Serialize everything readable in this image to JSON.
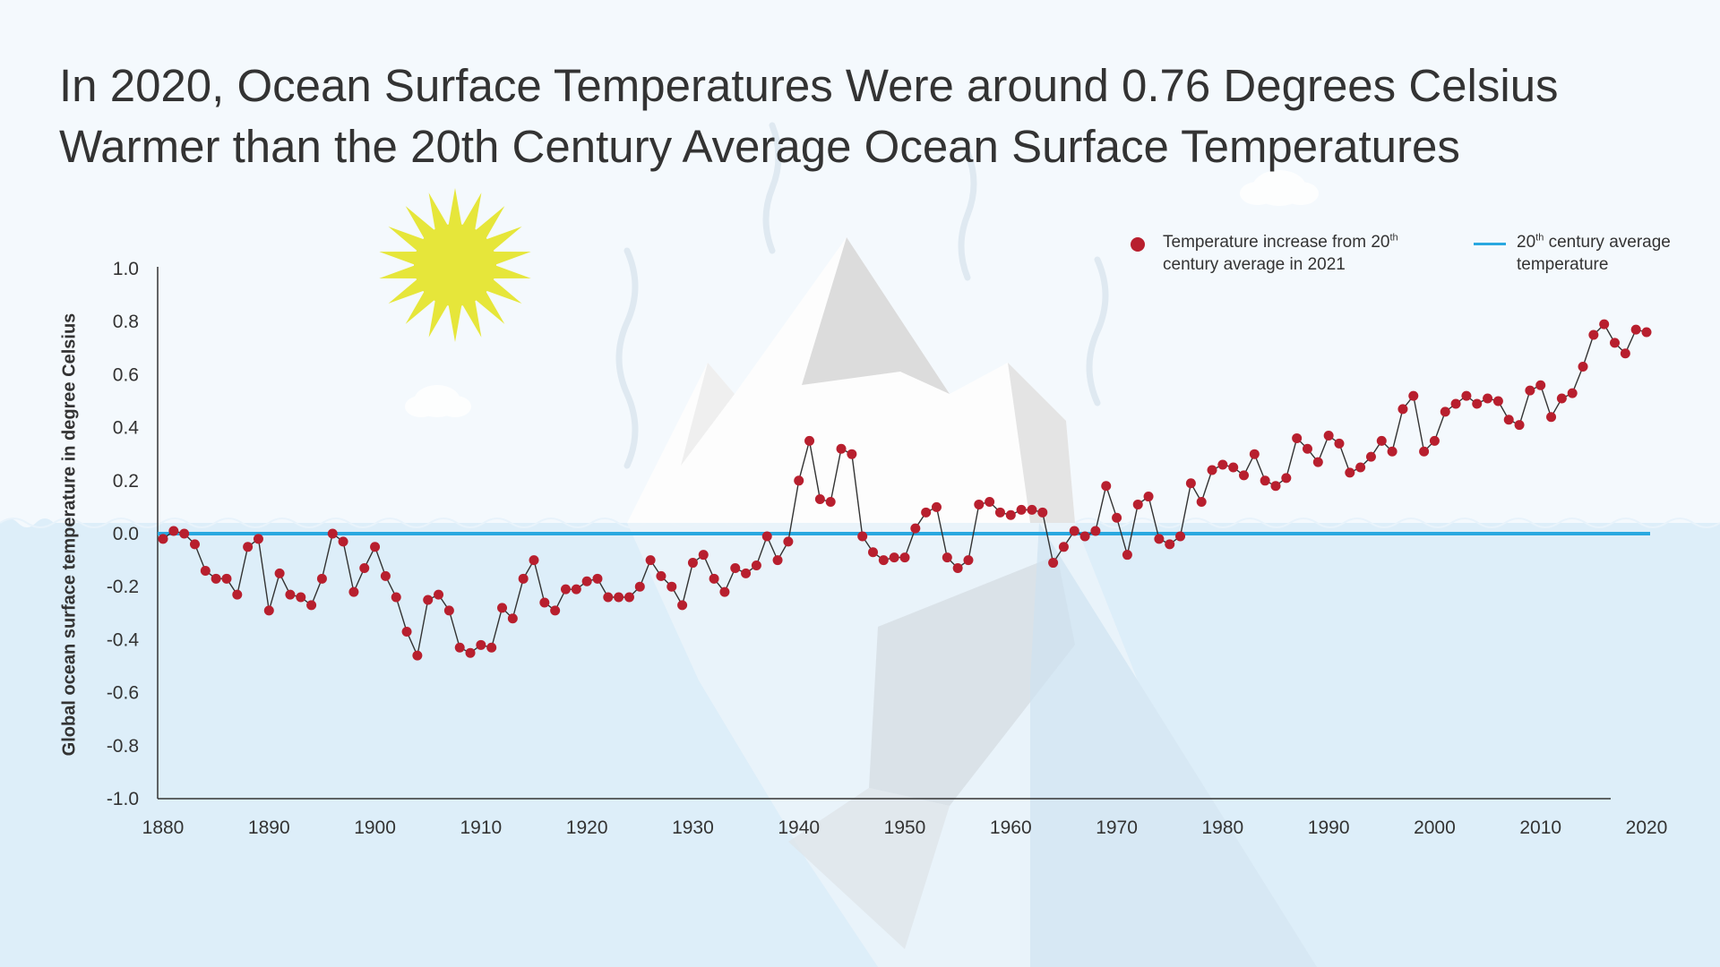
{
  "title": {
    "line1": "In 2020, Ocean Surface Temperatures Were around 0.76 Degrees Celsius",
    "line2": "Warmer than the 20th Century Average Ocean Surface Temperatures"
  },
  "legend": {
    "red_line1_prefix": "Temperature increase from 20",
    "red_line1_sup": "th",
    "red_line2": "century average in 2021",
    "blue_line1_prefix": "20",
    "blue_line1_sup": "th",
    "blue_line1_suffix": " century average",
    "blue_line2": "temperature"
  },
  "colors": {
    "background": "#f4f9fd",
    "water": "#ddeef9",
    "marker": "#b81f2e",
    "baseline": "#29a8e0",
    "sun": "#e6e63a",
    "text": "#333333"
  },
  "illustration": [
    "sun",
    "iceberg",
    "clouds",
    "heat-waves",
    "water"
  ],
  "chart_data": {
    "type": "line",
    "title": "In 2020, Ocean Surface Temperatures Were around 0.76 Degrees Celsius Warmer than the 20th Century Average Ocean Surface Temperatures",
    "xlabel": "",
    "ylabel": "Global ocean surface temperature in degree Celsius",
    "xlim": [
      1880,
      2020
    ],
    "ylim": [
      -1.0,
      1.0
    ],
    "x_ticks": [
      1880,
      1890,
      1900,
      1910,
      1920,
      1930,
      1940,
      1950,
      1960,
      1970,
      1980,
      1990,
      2000,
      2010,
      2020
    ],
    "y_ticks": [
      "1.0",
      "0.8",
      "0.6",
      "0.4",
      "0.2",
      "0.0",
      "-0.2",
      "-0.4",
      "-0.6",
      "-0.8",
      "-1.0"
    ],
    "grid": false,
    "legend_position": "top-right",
    "baseline": {
      "name": "20th century average temperature",
      "value": 0.0
    },
    "series": [
      {
        "name": "Temperature increase from 20th century average in 2021",
        "x": [
          1880,
          1881,
          1882,
          1883,
          1884,
          1885,
          1886,
          1887,
          1888,
          1889,
          1890,
          1891,
          1892,
          1893,
          1894,
          1895,
          1896,
          1897,
          1898,
          1899,
          1900,
          1901,
          1902,
          1903,
          1904,
          1905,
          1906,
          1907,
          1908,
          1909,
          1910,
          1911,
          1912,
          1913,
          1914,
          1915,
          1916,
          1917,
          1918,
          1919,
          1920,
          1921,
          1922,
          1923,
          1924,
          1925,
          1926,
          1927,
          1928,
          1929,
          1930,
          1931,
          1932,
          1933,
          1934,
          1935,
          1936,
          1937,
          1938,
          1939,
          1940,
          1941,
          1942,
          1943,
          1944,
          1945,
          1946,
          1947,
          1948,
          1949,
          1950,
          1951,
          1952,
          1953,
          1954,
          1955,
          1956,
          1957,
          1958,
          1959,
          1960,
          1961,
          1962,
          1963,
          1964,
          1965,
          1966,
          1967,
          1968,
          1969,
          1970,
          1971,
          1972,
          1973,
          1974,
          1975,
          1976,
          1977,
          1978,
          1979,
          1980,
          1981,
          1982,
          1983,
          1984,
          1985,
          1986,
          1987,
          1988,
          1989,
          1990,
          1991,
          1992,
          1993,
          1994,
          1995,
          1996,
          1997,
          1998,
          1999,
          2000,
          2001,
          2002,
          2003,
          2004,
          2005,
          2006,
          2007,
          2008,
          2009,
          2010,
          2011,
          2012,
          2013,
          2014,
          2015,
          2016,
          2017,
          2018,
          2019,
          2020
        ],
        "y": [
          -0.02,
          0.01,
          0.0,
          -0.04,
          -0.14,
          -0.17,
          -0.17,
          -0.23,
          -0.05,
          -0.02,
          -0.29,
          -0.15,
          -0.23,
          -0.24,
          -0.27,
          -0.17,
          0.0,
          -0.03,
          -0.22,
          -0.13,
          -0.05,
          -0.16,
          -0.24,
          -0.37,
          -0.46,
          -0.25,
          -0.23,
          -0.29,
          -0.43,
          -0.45,
          -0.42,
          -0.43,
          -0.28,
          -0.32,
          -0.17,
          -0.1,
          -0.26,
          -0.29,
          -0.21,
          -0.21,
          -0.18,
          -0.17,
          -0.24,
          -0.24,
          -0.24,
          -0.2,
          -0.1,
          -0.16,
          -0.2,
          -0.27,
          -0.11,
          -0.08,
          -0.17,
          -0.22,
          -0.13,
          -0.15,
          -0.12,
          -0.01,
          -0.1,
          -0.03,
          0.2,
          0.35,
          0.13,
          0.12,
          0.32,
          0.3,
          -0.01,
          -0.07,
          -0.1,
          -0.09,
          -0.09,
          0.02,
          0.08,
          0.1,
          -0.09,
          -0.13,
          -0.1,
          0.11,
          0.12,
          0.08,
          0.07,
          0.09,
          0.09,
          0.08,
          -0.11,
          -0.05,
          0.01,
          -0.01,
          0.01,
          0.18,
          0.06,
          -0.08,
          0.11,
          0.14,
          -0.02,
          -0.04,
          -0.01,
          0.19,
          0.12,
          0.24,
          0.26,
          0.25,
          0.22,
          0.3,
          0.2,
          0.18,
          0.21,
          0.36,
          0.32,
          0.27,
          0.37,
          0.34,
          0.23,
          0.25,
          0.29,
          0.35,
          0.31,
          0.47,
          0.52,
          0.31,
          0.35,
          0.46,
          0.49,
          0.52,
          0.49,
          0.51,
          0.5,
          0.43,
          0.41,
          0.54,
          0.56,
          0.44,
          0.51,
          0.53,
          0.63,
          0.75,
          0.79,
          0.72,
          0.68,
          0.77,
          0.76
        ]
      }
    ]
  }
}
